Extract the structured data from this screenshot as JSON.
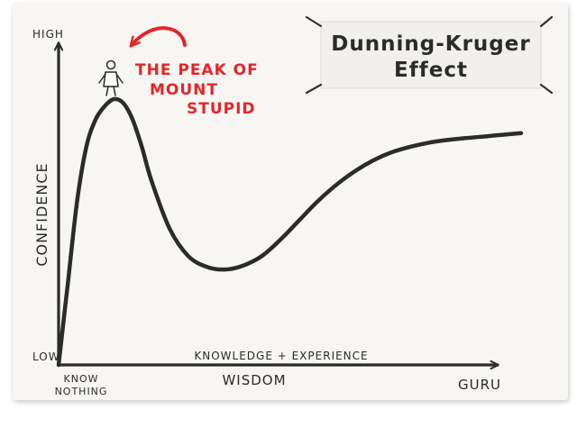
{
  "chart_data": {
    "type": "line",
    "title": "Dunning-Kruger Effect",
    "title_lines": [
      "Dunning-Kruger",
      "Effect"
    ],
    "xlabel": "Knowledge + Experience",
    "xlabel_sub": "Wisdom",
    "ylabel": "Confidence",
    "y_ticks": {
      "high": "High",
      "low": "Low"
    },
    "x_ticks": {
      "start": [
        "Know",
        "Nothing"
      ],
      "end": "Guru"
    },
    "xlim": [
      0,
      100
    ],
    "ylim": [
      0,
      100
    ],
    "grid": false,
    "series": [
      {
        "x": [
          0,
          2,
          4,
          6,
          8,
          10,
          12,
          14,
          16,
          18,
          20,
          24,
          28,
          32,
          36,
          40,
          44,
          48,
          52,
          56,
          60,
          64,
          68,
          72,
          76,
          80,
          84,
          88,
          92,
          96,
          100
        ],
        "y": [
          0,
          30,
          60,
          80,
          90,
          95,
          97.5,
          96,
          90,
          80,
          68,
          50,
          40,
          36,
          35,
          36.5,
          40,
          46,
          53,
          60,
          66,
          71,
          75,
          78,
          80,
          81.5,
          82.5,
          83.2,
          83.8,
          84.4,
          85
        ],
        "color": "#2b2b2b"
      }
    ],
    "annotations": [
      {
        "text_lines": [
          "The Peak of",
          "Mount",
          "Stupid"
        ],
        "x": 10,
        "y": 97.5,
        "color": "#e3262b"
      }
    ]
  }
}
